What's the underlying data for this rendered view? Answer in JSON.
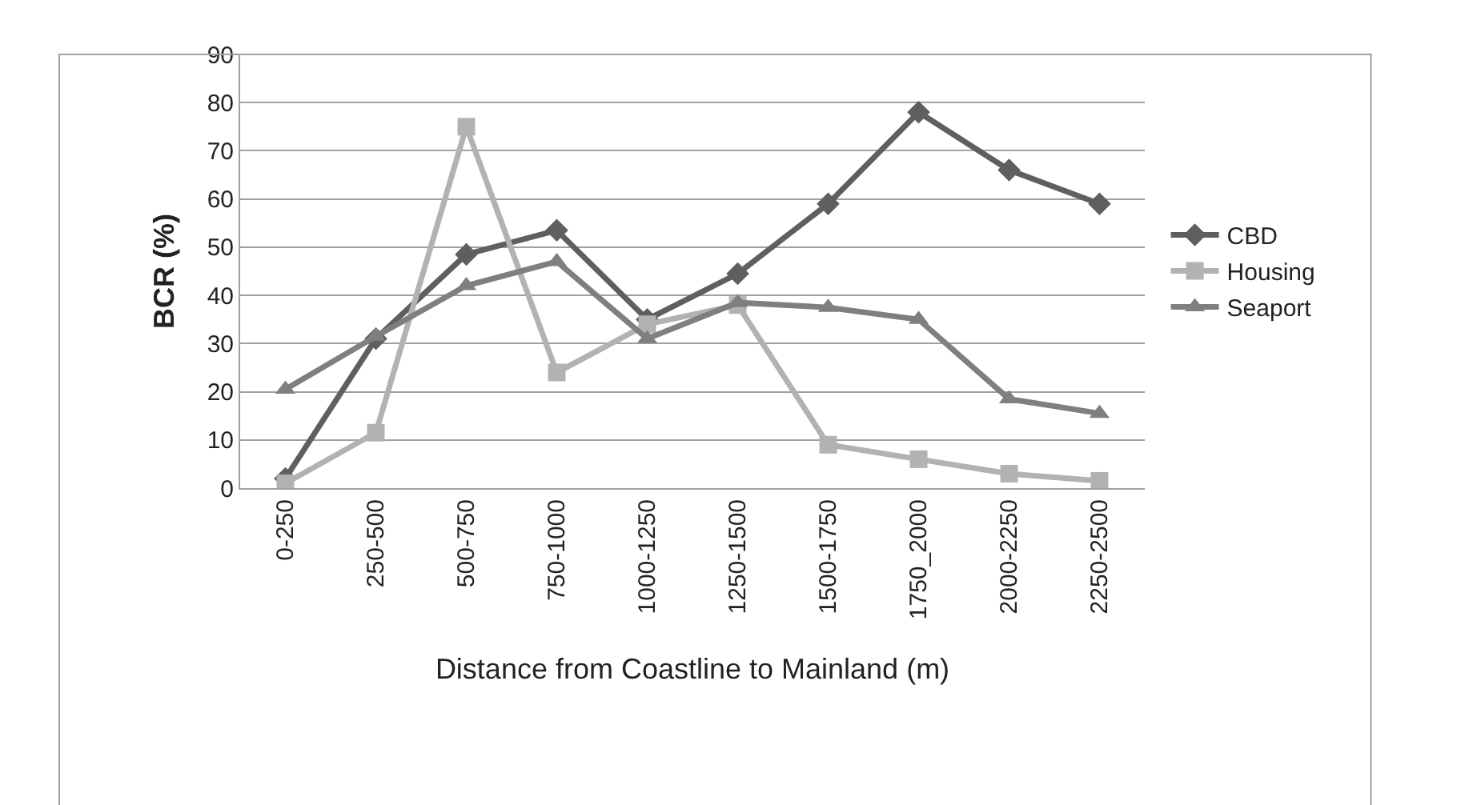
{
  "chart_data": {
    "type": "line",
    "ylabel": "BCR (%)",
    "xlabel": "Distance from Coastline to Mainland (m)",
    "categories": [
      "0-250",
      "250-500",
      "500-750",
      "750-1000",
      "1000-1250",
      "1250-1500",
      "1500-1750",
      "1750_2000",
      "2000-2250",
      "2250-2500"
    ],
    "series": [
      {
        "name": "CBD",
        "color": "#5f5f5f",
        "marker": "diamond",
        "values": [
          2,
          31,
          48.5,
          53.5,
          35,
          44.5,
          59,
          78,
          66,
          59
        ]
      },
      {
        "name": "Housing",
        "color": "#b2b2b2",
        "marker": "square",
        "values": [
          1,
          11.5,
          75,
          24,
          34,
          38,
          9,
          6,
          3,
          1.5
        ]
      },
      {
        "name": "Seaport",
        "color": "#7f7f7f",
        "marker": "triangle",
        "values": [
          20.5,
          31.5,
          42,
          47,
          31,
          38.5,
          37.5,
          35,
          18.5,
          15.5
        ]
      }
    ],
    "ylim": [
      0,
      90
    ],
    "yticks": [
      0,
      10,
      20,
      30,
      40,
      50,
      60,
      70,
      80,
      90
    ],
    "grid": "y",
    "legend": "right",
    "line_style": "solid"
  }
}
